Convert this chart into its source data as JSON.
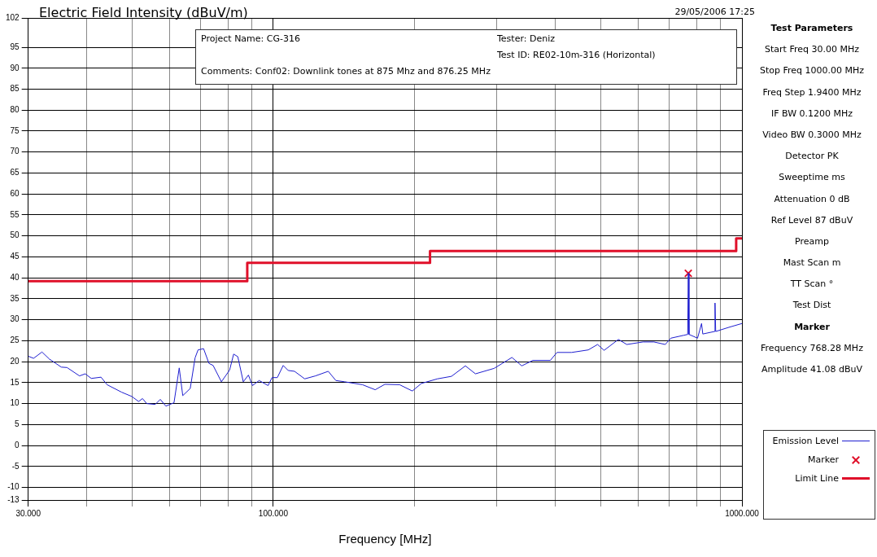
{
  "chart_data": {
    "type": "line",
    "title": "Electric Field Intensity (dBuV/m)",
    "xlabel": "Frequency [MHz]",
    "log": "x",
    "grid": true,
    "legend": "bottom right",
    "xlim": [
      30,
      1000
    ],
    "ylim": [
      -13,
      102
    ],
    "xticks": [
      {
        "value": 30,
        "label": "30.000"
      },
      {
        "value": 40,
        "label": null
      },
      {
        "value": 50,
        "label": null
      },
      {
        "value": 60,
        "label": null
      },
      {
        "value": 70,
        "label": null
      },
      {
        "value": 80,
        "label": null
      },
      {
        "value": 90,
        "label": null
      },
      {
        "value": 100,
        "label": "100.000"
      },
      {
        "value": 200,
        "label": null
      },
      {
        "value": 300,
        "label": null
      },
      {
        "value": 400,
        "label": null
      },
      {
        "value": 500,
        "label": null
      },
      {
        "value": 600,
        "label": null
      },
      {
        "value": 700,
        "label": null
      },
      {
        "value": 800,
        "label": null
      },
      {
        "value": 900,
        "label": null
      },
      {
        "value": 1000,
        "label": "1000.000"
      }
    ],
    "yticks": [
      -13,
      -10,
      -5,
      0,
      5,
      10,
      15,
      20,
      25,
      30,
      35,
      40,
      45,
      50,
      55,
      60,
      65,
      70,
      75,
      80,
      85,
      90,
      95,
      102
    ],
    "series": [
      {
        "name": "Emission Level",
        "type": "line",
        "color": "#1f1fd0",
        "x": [
          30,
          30.8,
          32.1,
          33.3,
          35.3,
          36.3,
          38.6,
          39.7,
          40.9,
          42.9,
          44.2,
          47.5,
          49.9,
          51.6,
          52.6,
          53.7,
          56,
          57.4,
          59,
          61.4,
          63,
          64.1,
          66.5,
          68.1,
          69.1,
          71,
          72.9,
          74.4,
          77.5,
          80.7,
          82.3,
          84,
          86.3,
          88.5,
          90.3,
          93.3,
          97.5,
          99.4,
          102,
          105,
          107.6,
          111,
          116.7,
          123,
          131,
          136,
          142,
          155,
          165,
          173,
          186,
          198,
          207,
          224,
          240,
          257,
          270,
          296,
          323,
          339,
          358,
          390,
          403,
          433,
          470,
          492,
          508,
          545,
          568,
          615,
          649,
          686,
          705,
          752,
          766,
          768.28,
          771,
          804,
          820,
          825,
          874,
          876,
          879,
          938,
          1000
        ],
        "values": [
          21.3,
          20.8,
          22.3,
          20.6,
          18.7,
          18.6,
          16.6,
          17.1,
          16,
          16.3,
          14.5,
          12.7,
          11.7,
          10.5,
          11.2,
          10,
          9.8,
          11,
          9.4,
          10.2,
          18.5,
          11.9,
          13.6,
          20.9,
          22.8,
          23.1,
          19.6,
          19.1,
          15.2,
          18,
          21.8,
          21.2,
          15.2,
          16.8,
          14.3,
          15.5,
          14.3,
          16.2,
          16.2,
          19.1,
          17.9,
          17.7,
          15.9,
          16.6,
          17.7,
          15.5,
          15.2,
          14.5,
          13.3,
          14.6,
          14.5,
          13,
          14.8,
          15.9,
          16.5,
          19,
          17.1,
          18.4,
          21,
          19,
          20.3,
          20.3,
          22.2,
          22.2,
          22.8,
          24.1,
          22.7,
          25.3,
          24.1,
          24.7,
          24.7,
          24.1,
          25.6,
          26.3,
          26.5,
          41.08,
          26.5,
          25.6,
          29.1,
          26.6,
          27.2,
          34,
          27.2,
          28.2,
          29.1
        ]
      },
      {
        "name": "Marker",
        "type": "scatter",
        "marker": "cross",
        "color": "#e0102a",
        "x": [
          768.28
        ],
        "values": [
          41.08
        ]
      },
      {
        "name": "Limit Line",
        "type": "step",
        "color": "#e0102a",
        "x": [
          30,
          88,
          216,
          972,
          1000
        ],
        "values": [
          39.2,
          43.6,
          46.4,
          49.4,
          49.4
        ]
      }
    ],
    "annotations": [
      "29/05/2006  17:25",
      "Project Name:  CG-316",
      "Tester:  Deniz",
      "Test ID:  RE02-10m-316 (Horizontal)",
      "Comments:  Conf02: Downlink tones at 875 Mhz and 876.25 MHz",
      "Test Parameters",
      "Start Freq  30.00  MHz",
      "Stop Freq  1000.00  MHz",
      "Freq Step  1.9400  MHz",
      "IF BW  0.1200  MHz",
      "Video BW  0.3000  MHz",
      "Detector  PK",
      "Sweeptime  ms",
      "Attenuation  0  dB",
      "Ref Level  87  dBuV",
      "Preamp",
      "Mast Scan  m",
      "TT Scan  °",
      "Test Dist",
      "Marker",
      "Frequency  768.28  MHz",
      "Amplitude  41.08  dBuV"
    ]
  }
}
